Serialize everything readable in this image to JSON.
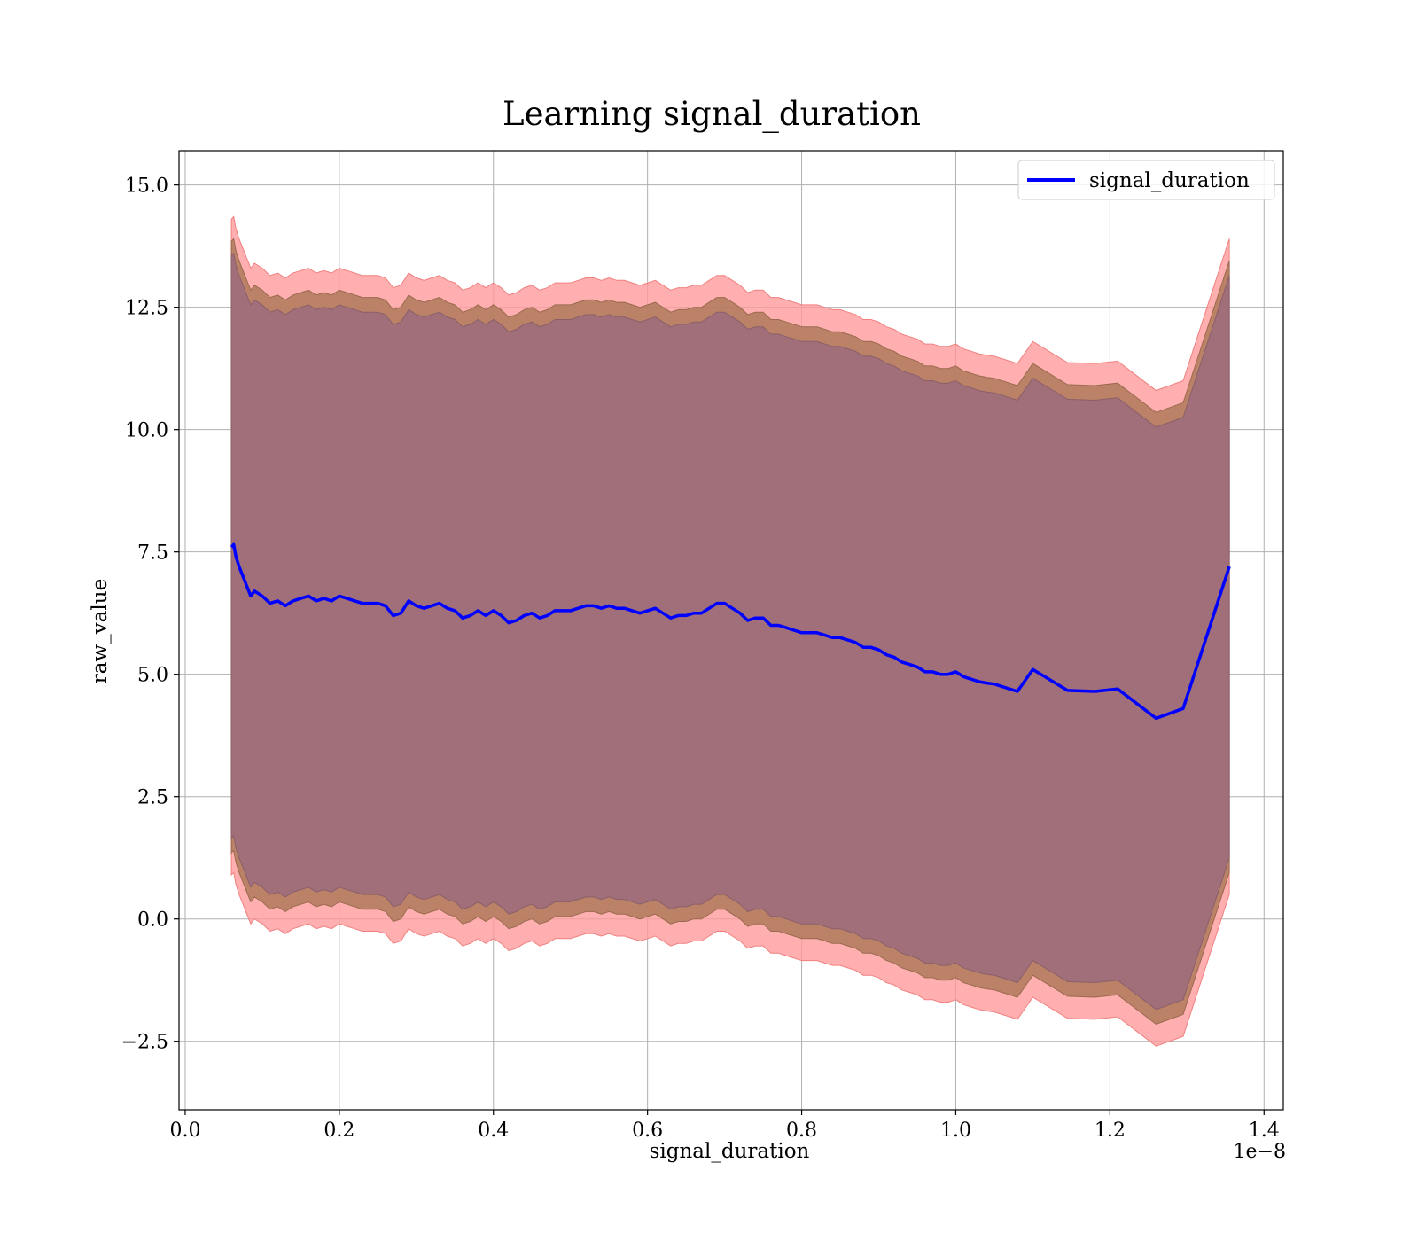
{
  "chart_data": {
    "type": "area",
    "title": "Learning signal_duration",
    "xlabel": "signal_duration",
    "ylabel": "raw_value",
    "x_offset_label": "1e−8",
    "xlim": [
      -0.008,
      1.425
    ],
    "ylim": [
      -3.9,
      15.7
    ],
    "xticks": [
      0.0,
      0.2,
      0.4,
      0.6,
      0.8,
      1.0,
      1.2,
      1.4
    ],
    "xtick_labels": [
      "0.0",
      "0.2",
      "0.4",
      "0.6",
      "0.8",
      "1.0",
      "1.2",
      "1.4"
    ],
    "yticks": [
      -2.5,
      0.0,
      2.5,
      5.0,
      7.5,
      10.0,
      12.5,
      15.0
    ],
    "ytick_labels": [
      "−2.5",
      "0.0",
      "2.5",
      "5.0",
      "7.5",
      "10.0",
      "12.5",
      "15.0"
    ],
    "grid": true,
    "legend_position": "top-right",
    "colors": {
      "line": "#0000ff",
      "band_outer": "#ff9999",
      "band_mid": "#b07a5a",
      "band_inner": "#a06f79"
    },
    "series": [
      {
        "name": "signal_duration",
        "x": [
          0.06,
          0.063,
          0.066,
          0.07,
          0.075,
          0.08,
          0.085,
          0.09,
          0.1,
          0.11,
          0.12,
          0.13,
          0.14,
          0.15,
          0.16,
          0.17,
          0.18,
          0.19,
          0.2,
          0.21,
          0.22,
          0.23,
          0.24,
          0.25,
          0.26,
          0.27,
          0.28,
          0.29,
          0.3,
          0.31,
          0.32,
          0.33,
          0.34,
          0.35,
          0.36,
          0.37,
          0.38,
          0.39,
          0.4,
          0.41,
          0.42,
          0.43,
          0.44,
          0.45,
          0.46,
          0.47,
          0.48,
          0.49,
          0.5,
          0.51,
          0.52,
          0.53,
          0.54,
          0.55,
          0.56,
          0.57,
          0.58,
          0.59,
          0.6,
          0.61,
          0.62,
          0.63,
          0.64,
          0.65,
          0.66,
          0.67,
          0.68,
          0.69,
          0.7,
          0.71,
          0.72,
          0.73,
          0.74,
          0.75,
          0.76,
          0.77,
          0.78,
          0.79,
          0.8,
          0.81,
          0.82,
          0.83,
          0.84,
          0.85,
          0.86,
          0.87,
          0.88,
          0.89,
          0.9,
          0.91,
          0.92,
          0.93,
          0.94,
          0.95,
          0.96,
          0.97,
          0.98,
          0.99,
          1.0,
          1.01,
          1.02,
          1.03,
          1.04,
          1.05,
          1.06,
          1.08,
          1.1,
          1.145,
          1.18,
          1.21,
          1.26,
          1.295,
          1.355
        ],
        "y": [
          7.6,
          7.65,
          7.4,
          7.2,
          7.0,
          6.8,
          6.6,
          6.7,
          6.6,
          6.45,
          6.5,
          6.4,
          6.5,
          6.55,
          6.6,
          6.5,
          6.55,
          6.5,
          6.6,
          6.55,
          6.5,
          6.45,
          6.45,
          6.45,
          6.4,
          6.2,
          6.25,
          6.5,
          6.4,
          6.35,
          6.4,
          6.45,
          6.35,
          6.3,
          6.15,
          6.2,
          6.3,
          6.2,
          6.3,
          6.2,
          6.05,
          6.1,
          6.2,
          6.25,
          6.15,
          6.2,
          6.3,
          6.3,
          6.3,
          6.35,
          6.4,
          6.4,
          6.35,
          6.4,
          6.35,
          6.35,
          6.3,
          6.25,
          6.3,
          6.35,
          6.25,
          6.15,
          6.2,
          6.2,
          6.25,
          6.25,
          6.35,
          6.45,
          6.45,
          6.35,
          6.25,
          6.1,
          6.15,
          6.15,
          6.0,
          6.0,
          5.95,
          5.9,
          5.85,
          5.85,
          5.85,
          5.8,
          5.75,
          5.75,
          5.7,
          5.65,
          5.55,
          5.55,
          5.5,
          5.4,
          5.35,
          5.25,
          5.2,
          5.15,
          5.05,
          5.05,
          5.0,
          5.0,
          5.05,
          4.95,
          4.9,
          4.85,
          4.82,
          4.8,
          4.75,
          4.65,
          5.1,
          4.67,
          4.65,
          4.7,
          4.1,
          4.3,
          7.2
        ],
        "band_outer": 6.7,
        "band_mid": 6.25,
        "band_inner": 5.95
      }
    ]
  }
}
